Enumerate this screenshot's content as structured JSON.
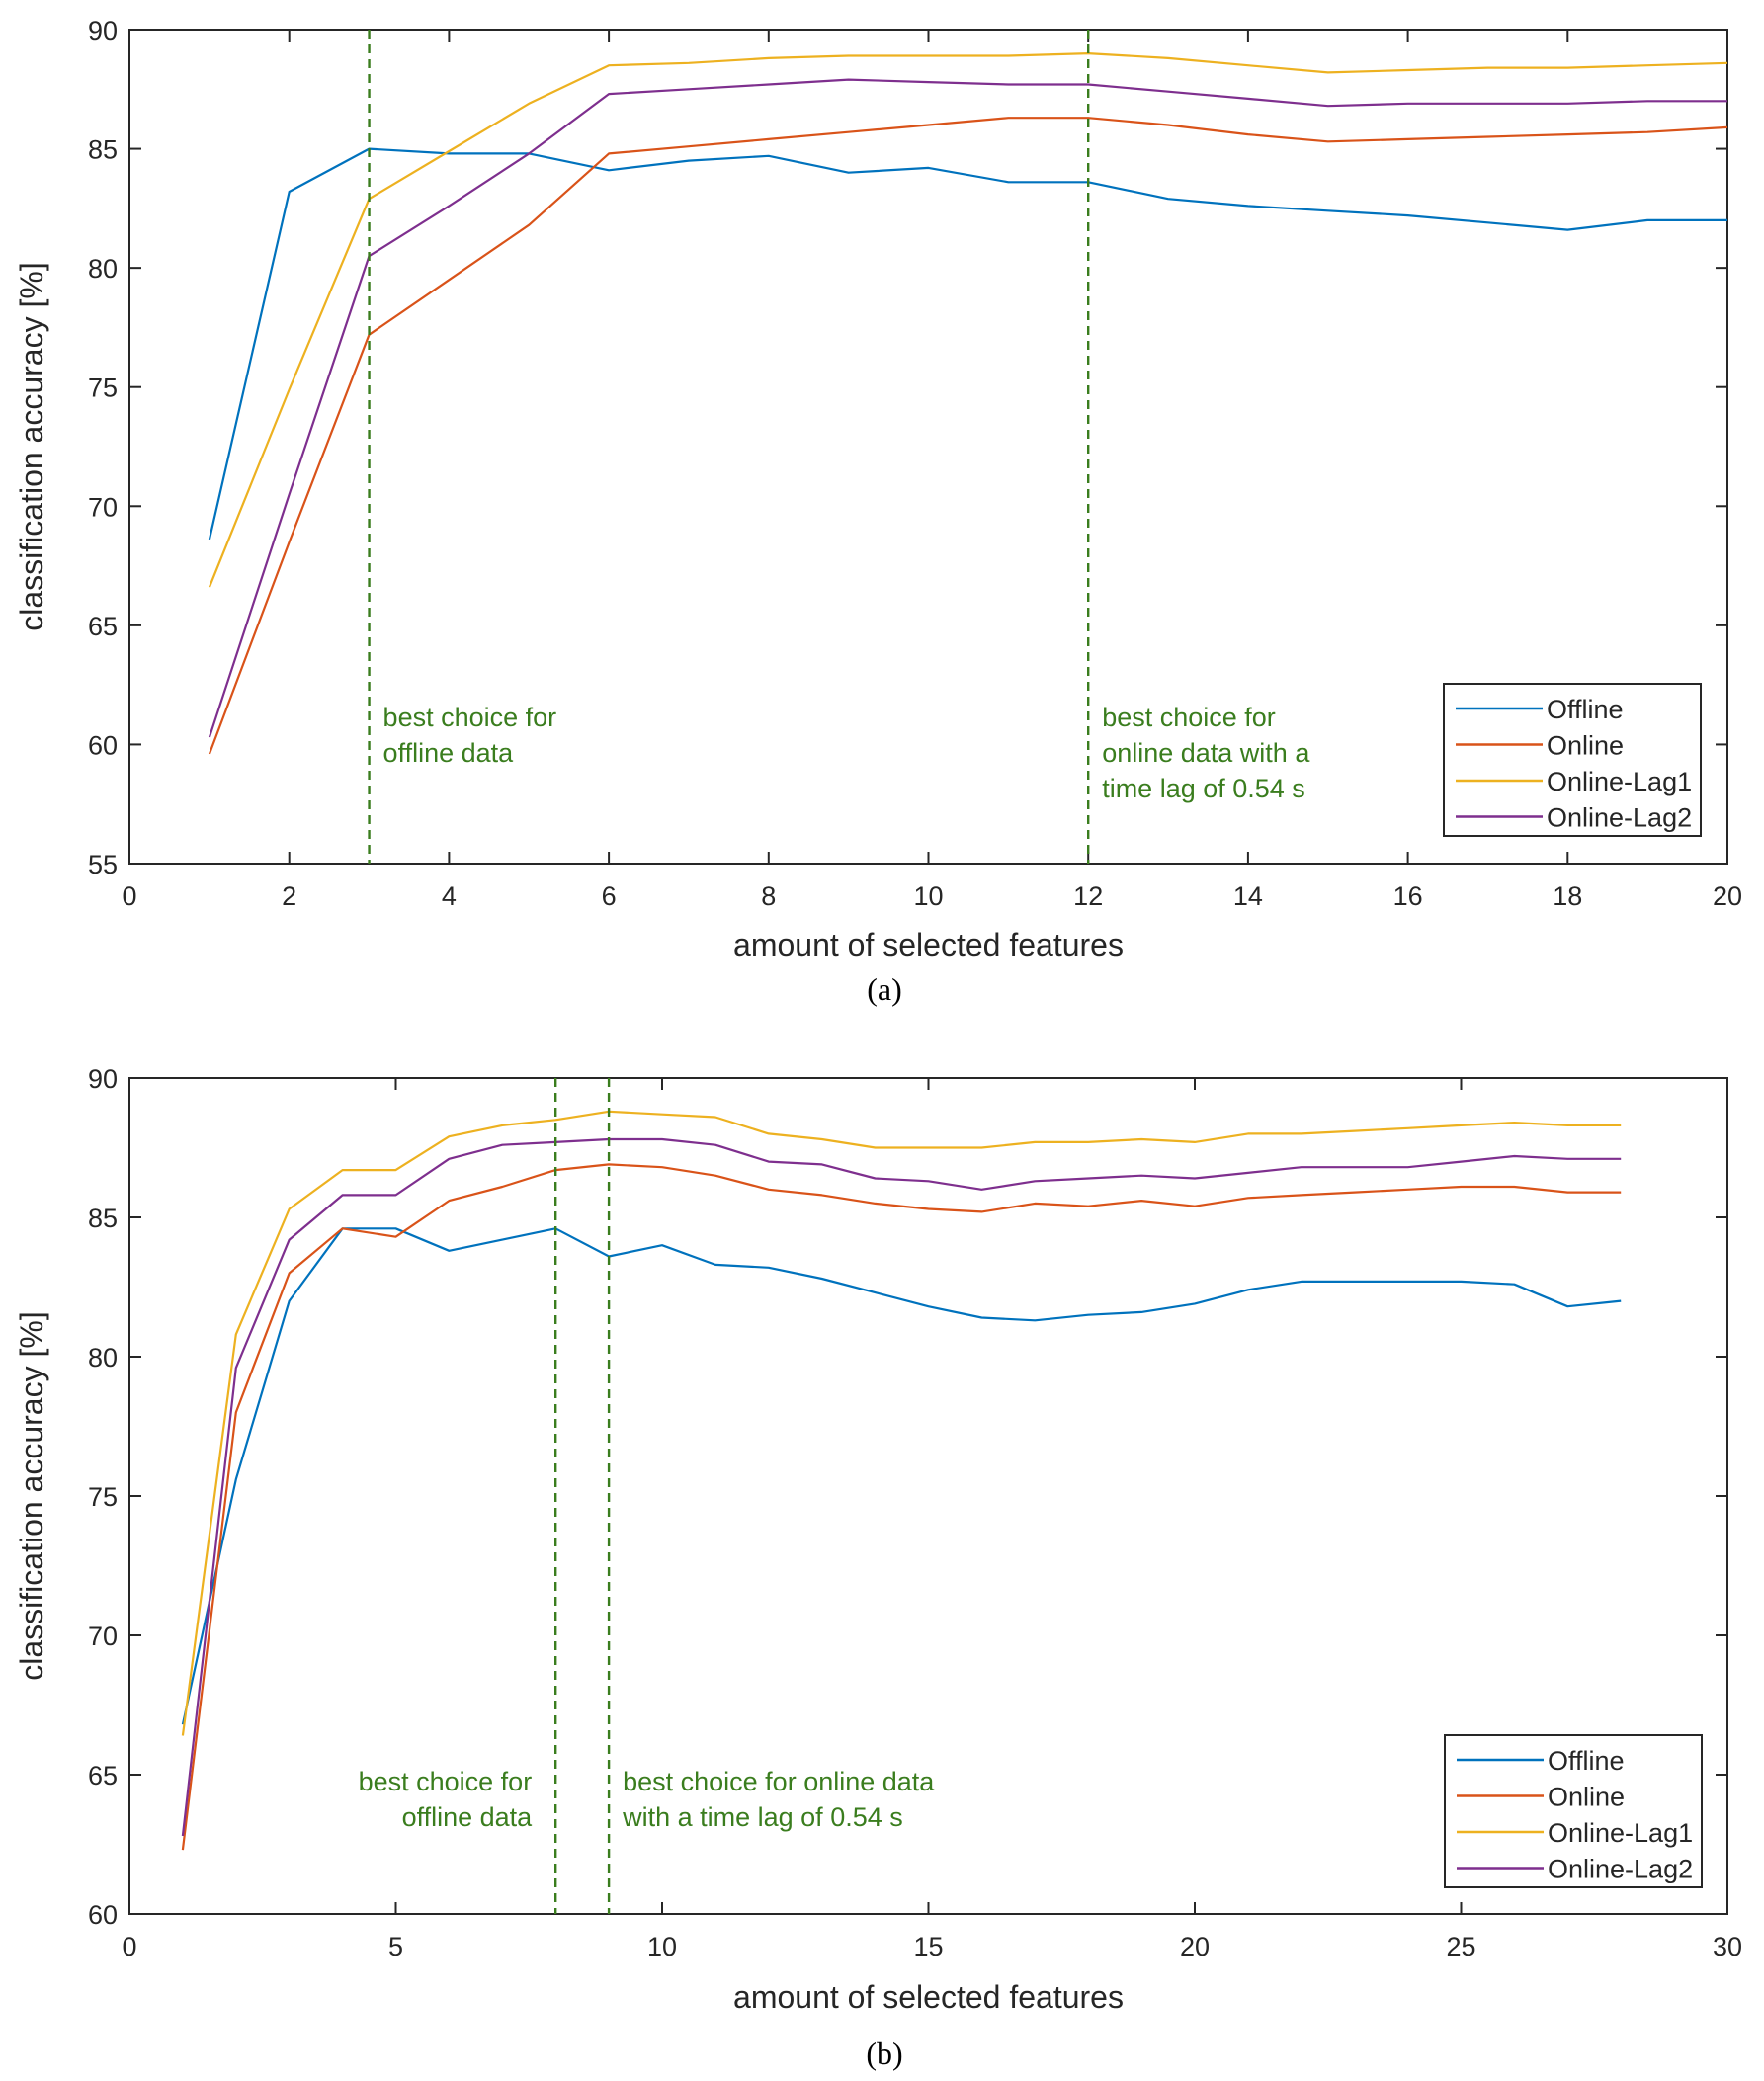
{
  "chart_data": [
    {
      "type": "line",
      "panel_label": "(a)",
      "xlabel": "amount of selected features",
      "ylabel": "classification accuracy [%]",
      "xlim": [
        0,
        20
      ],
      "ylim": [
        55,
        90
      ],
      "xticks": [
        0,
        2,
        4,
        6,
        8,
        10,
        12,
        14,
        16,
        18,
        20
      ],
      "yticks": [
        55,
        60,
        65,
        70,
        75,
        80,
        85,
        90
      ],
      "legend_position": "bottom-right",
      "series": [
        {
          "name": "Offline",
          "color": "#0072bd",
          "x": [
            1,
            2,
            3,
            4,
            5,
            6,
            7,
            8,
            9,
            10,
            11,
            12,
            13,
            14,
            15,
            16,
            17,
            18,
            19,
            20
          ],
          "y": [
            68.6,
            83.2,
            85.0,
            84.8,
            84.8,
            84.1,
            84.5,
            84.7,
            84.0,
            84.2,
            83.6,
            83.6,
            82.9,
            82.6,
            82.4,
            82.2,
            81.9,
            81.6,
            82.0,
            82.0
          ]
        },
        {
          "name": "Online",
          "color": "#d95319",
          "x": [
            1,
            2,
            3,
            4,
            5,
            6,
            7,
            8,
            9,
            10,
            11,
            12,
            13,
            14,
            15,
            16,
            17,
            18,
            19,
            20
          ],
          "y": [
            59.6,
            68.5,
            77.2,
            79.5,
            81.8,
            84.8,
            85.1,
            85.4,
            85.7,
            86.0,
            86.3,
            86.3,
            86.0,
            85.6,
            85.3,
            85.4,
            85.5,
            85.6,
            85.7,
            85.9
          ]
        },
        {
          "name": "Online-Lag1",
          "color": "#edb120",
          "x": [
            1,
            2,
            3,
            4,
            5,
            6,
            7,
            8,
            9,
            10,
            11,
            12,
            13,
            14,
            15,
            16,
            17,
            18,
            19,
            20
          ],
          "y": [
            66.6,
            74.9,
            82.9,
            84.9,
            86.9,
            88.5,
            88.6,
            88.8,
            88.9,
            88.9,
            88.9,
            89.0,
            88.8,
            88.5,
            88.2,
            88.3,
            88.4,
            88.4,
            88.5,
            88.6
          ]
        },
        {
          "name": "Online-Lag2",
          "color": "#7e2f8e",
          "x": [
            1,
            2,
            3,
            4,
            5,
            6,
            7,
            8,
            9,
            10,
            11,
            12,
            13,
            14,
            15,
            16,
            17,
            18,
            19,
            20
          ],
          "y": [
            60.3,
            70.5,
            80.5,
            82.6,
            84.8,
            87.3,
            87.5,
            87.7,
            87.9,
            87.8,
            87.7,
            87.7,
            87.4,
            87.1,
            86.8,
            86.9,
            86.9,
            86.9,
            87.0,
            87.0
          ]
        }
      ],
      "vlines": [
        {
          "x": 3,
          "label_lines": [
            "best choice for",
            "offline data"
          ],
          "align": "start"
        },
        {
          "x": 12,
          "label_lines": [
            "best choice for",
            "online data with a",
            "time lag of 0.54 s"
          ],
          "align": "start"
        }
      ],
      "grid": false
    },
    {
      "type": "line",
      "panel_label": "(b)",
      "xlabel": "amount of selected features",
      "ylabel": "classification accuracy [%]",
      "xlim": [
        0,
        30
      ],
      "ylim": [
        60,
        90
      ],
      "xticks": [
        0,
        5,
        10,
        15,
        20,
        25,
        30
      ],
      "yticks": [
        60,
        65,
        70,
        75,
        80,
        85,
        90
      ],
      "legend_position": "bottom-right",
      "series": [
        {
          "name": "Offline",
          "color": "#0072bd",
          "x": [
            1,
            2,
            3,
            4,
            5,
            6,
            7,
            8,
            9,
            10,
            11,
            12,
            13,
            14,
            15,
            16,
            17,
            18,
            19,
            20,
            21,
            22,
            23,
            24,
            25,
            26,
            27,
            28
          ],
          "y": [
            66.8,
            75.6,
            82.0,
            84.6,
            84.6,
            83.8,
            84.2,
            84.6,
            83.6,
            84.0,
            83.3,
            83.2,
            82.8,
            82.3,
            81.8,
            81.4,
            81.3,
            81.5,
            81.6,
            81.9,
            82.4,
            82.7,
            82.7,
            82.7,
            82.7,
            82.6,
            81.8,
            82.0
          ]
        },
        {
          "name": "Online",
          "color": "#d95319",
          "x": [
            1,
            2,
            3,
            4,
            5,
            6,
            7,
            8,
            9,
            10,
            11,
            12,
            13,
            14,
            15,
            16,
            17,
            18,
            19,
            20,
            21,
            22,
            23,
            24,
            25,
            26,
            27,
            28
          ],
          "y": [
            62.3,
            78.0,
            83.0,
            84.6,
            84.3,
            85.6,
            86.1,
            86.7,
            86.9,
            86.8,
            86.5,
            86.0,
            85.8,
            85.5,
            85.3,
            85.2,
            85.5,
            85.4,
            85.6,
            85.4,
            85.7,
            85.8,
            85.9,
            86.0,
            86.1,
            86.1,
            85.9,
            85.9
          ]
        },
        {
          "name": "Online-Lag1",
          "color": "#edb120",
          "x": [
            1,
            2,
            3,
            4,
            5,
            6,
            7,
            8,
            9,
            10,
            11,
            12,
            13,
            14,
            15,
            16,
            17,
            18,
            19,
            20,
            21,
            22,
            23,
            24,
            25,
            26,
            27,
            28
          ],
          "y": [
            66.4,
            80.8,
            85.3,
            86.7,
            86.7,
            87.9,
            88.3,
            88.5,
            88.8,
            88.7,
            88.6,
            88.0,
            87.8,
            87.5,
            87.5,
            87.5,
            87.7,
            87.7,
            87.8,
            87.7,
            88.0,
            88.0,
            88.1,
            88.2,
            88.3,
            88.4,
            88.3,
            88.3
          ]
        },
        {
          "name": "Online-Lag2",
          "color": "#7e2f8e",
          "x": [
            1,
            2,
            3,
            4,
            5,
            6,
            7,
            8,
            9,
            10,
            11,
            12,
            13,
            14,
            15,
            16,
            17,
            18,
            19,
            20,
            21,
            22,
            23,
            24,
            25,
            26,
            27,
            28
          ],
          "y": [
            62.8,
            79.6,
            84.2,
            85.8,
            85.8,
            87.1,
            87.6,
            87.7,
            87.8,
            87.8,
            87.6,
            87.0,
            86.9,
            86.4,
            86.3,
            86.0,
            86.3,
            86.4,
            86.5,
            86.4,
            86.6,
            86.8,
            86.8,
            86.8,
            87.0,
            87.2,
            87.1,
            87.1
          ]
        }
      ],
      "vlines": [
        {
          "x": 8,
          "label_lines": [
            "best choice for",
            "offline data"
          ],
          "align": "end"
        },
        {
          "x": 9,
          "label_lines": [
            "best choice for online data",
            "with a time lag of 0.54 s"
          ],
          "align": "start"
        }
      ],
      "grid": false
    }
  ]
}
